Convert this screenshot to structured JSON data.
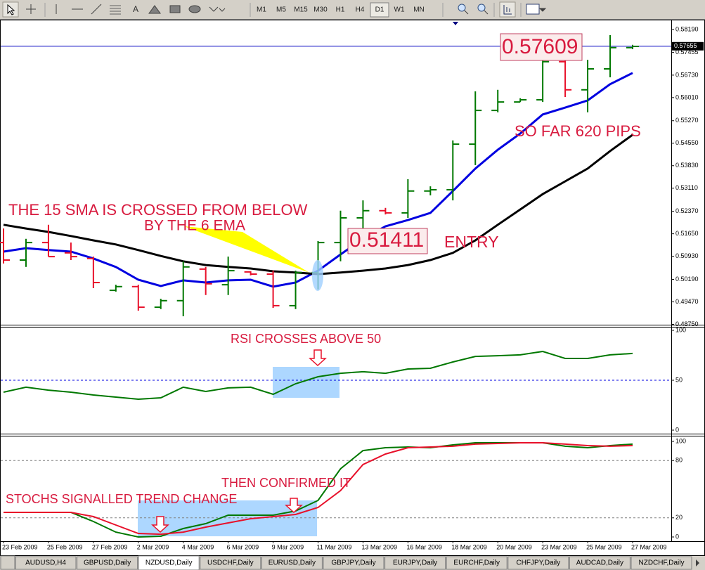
{
  "toolbar": {
    "text_tool": "A",
    "timeframes": [
      "M1",
      "M5",
      "M15",
      "M30",
      "H1",
      "H4",
      "D1",
      "W1",
      "MN"
    ],
    "active_timeframe": "D1"
  },
  "chart_data": [
    {
      "type": "ohlc",
      "categories": [
        "23 Feb 2009",
        null,
        "25 Feb 2009",
        null,
        "27 Feb 2009",
        null,
        "2 Mar 2009",
        null,
        "4 Mar 2009",
        null,
        "6 Mar 2009",
        null,
        "9 Mar 2009",
        null,
        "11 Mar 2009",
        null,
        "13 Mar 2009",
        null,
        "16 Mar 2009",
        null,
        "18 Mar 2009",
        null,
        "20 Mar 2009",
        null,
        "23 Mar 2009",
        null,
        "25 Mar 2009",
        null,
        "27 Mar 2009"
      ],
      "open": [
        0.5137,
        0.5081,
        0.5137,
        0.5104,
        0.5086,
        0.4984,
        0.4996,
        0.493,
        0.4951,
        0.5052,
        0.5002,
        0.5043,
        0.5036,
        0.4935,
        0.5041,
        0.5137,
        0.5216,
        0.5239,
        0.5232,
        0.5302,
        0.5306,
        0.5452,
        0.556,
        0.5587,
        0.5594,
        0.5716,
        0.5626,
        0.5693,
        0.5761
      ],
      "high": [
        0.5182,
        0.5149,
        0.5194,
        0.5137,
        0.5092,
        0.5002,
        0.5002,
        0.4957,
        0.5077,
        0.5059,
        0.5092,
        0.5045,
        0.5047,
        0.5047,
        0.5142,
        0.5239,
        0.5272,
        0.5248,
        0.534,
        0.5317,
        0.5464,
        0.5621,
        0.5626,
        0.5599,
        0.5734,
        0.5734,
        0.5722,
        0.5801,
        0.577
      ],
      "low": [
        0.507,
        0.5059,
        0.5092,
        0.5081,
        0.4991,
        0.498,
        0.4919,
        0.4924,
        0.4901,
        0.4969,
        0.4969,
        0.5032,
        0.4928,
        0.4924,
        0.4987,
        0.5077,
        0.5171,
        0.5227,
        0.5216,
        0.5288,
        0.5272,
        0.5385,
        0.5554,
        0.5587,
        0.5587,
        0.5603,
        0.5554,
        0.5666,
        0.5756
      ],
      "close": [
        0.5081,
        0.5137,
        0.5092,
        0.5092,
        0.5009,
        0.4996,
        0.493,
        0.4951,
        0.5059,
        0.5005,
        0.5047,
        0.5036,
        0.4935,
        0.5041,
        0.5137,
        0.5216,
        0.5239,
        0.5232,
        0.5302,
        0.5306,
        0.5452,
        0.556,
        0.5587,
        0.5594,
        0.5716,
        0.5626,
        0.5693,
        0.5761,
        0.5765
      ],
      "up_color": "#007800",
      "down_color": "#e8102a",
      "overlays": [
        {
          "color": "#0000e0",
          "values": [
            0.5108,
            0.5119,
            0.5113,
            0.5108,
            0.5086,
            0.5059,
            0.5018,
            0.4998,
            0.5016,
            0.5009,
            0.5016,
            0.5018,
            0.4996,
            0.5009,
            0.5047,
            0.5099,
            0.5149,
            0.5189,
            0.5209,
            0.5232,
            0.5302,
            0.5374,
            0.5434,
            0.5486,
            0.5547,
            0.5569,
            0.5592,
            0.5644,
            0.568
          ]
        },
        {
          "color": "#000000",
          "values": [
            0.5194,
            0.5182,
            0.5171,
            0.5158,
            0.5144,
            0.5131,
            0.5113,
            0.5094,
            0.5077,
            0.5065,
            0.5059,
            0.5054,
            0.5045,
            0.5041,
            0.5036,
            0.5041,
            0.5047,
            0.5054,
            0.5065,
            0.5081,
            0.5104,
            0.5144,
            0.5194,
            0.5243,
            0.5292,
            0.5333,
            0.5374,
            0.543,
            0.5482
          ]
        }
      ],
      "ylim": [
        0.4874,
        0.5846
      ],
      "yticks": [
        {
          "value": 0.5819,
          "label": "0.58190"
        },
        {
          "value": 0.57455,
          "label": "0.57455"
        },
        {
          "value": 0.5673,
          "label": "0.56730"
        },
        {
          "value": 0.5601,
          "label": "0.56010"
        },
        {
          "value": 0.5527,
          "label": "0.55270"
        },
        {
          "value": 0.5455,
          "label": "0.54550"
        },
        {
          "value": 0.5383,
          "label": "0.53830"
        },
        {
          "value": 0.5311,
          "label": "0.53110"
        },
        {
          "value": 0.5237,
          "label": "0.52370"
        },
        {
          "value": 0.5165,
          "label": "0.51650"
        },
        {
          "value": 0.5093,
          "label": "0.50930"
        },
        {
          "value": 0.5019,
          "label": "0.50190"
        },
        {
          "value": 0.4947,
          "label": "0.49470"
        },
        {
          "value": 0.4875,
          "label": "0.48750"
        }
      ],
      "last_price": 0.57655,
      "annotations": [
        "THE 15 SMA IS CROSSED FROM BELOW",
        "BY THE 6 EMA",
        "0.51411",
        "ENTRY",
        "0.57609",
        "SO FAR 620 PIPS"
      ]
    },
    {
      "type": "line",
      "values": [
        38.0,
        43.0,
        40.1,
        38.0,
        35.2,
        33.1,
        31.0,
        32.4,
        43.0,
        38.7,
        42.3,
        43.0,
        35.9,
        46.5,
        53.5,
        57.0,
        58.5,
        57.0,
        61.3,
        62.0,
        68.3,
        73.9,
        74.6,
        75.4,
        78.9,
        71.8,
        71.8,
        75.4,
        76.8
      ],
      "color": "#007800",
      "ylim": [
        0,
        100
      ],
      "yticks": [
        100,
        50,
        0
      ],
      "levels": [
        50
      ],
      "level_color": "#0000e0",
      "annotations": [
        "RSI CROSSES ABOVE 50"
      ]
    },
    {
      "type": "line",
      "series": [
        {
          "color": "#007800",
          "values": [
            25.7,
            25.7,
            25.7,
            25.7,
            16.2,
            5.1,
            0,
            0.7,
            8.8,
            14.0,
            22.8,
            22.8,
            22.8,
            27.2,
            38.2,
            71.3,
            90.4,
            93.4,
            94.1,
            93.4,
            96.3,
            98.5,
            98.5,
            98.5,
            98.5,
            94.9,
            93.4,
            95.6,
            97.1
          ]
        },
        {
          "color": "#e8102a",
          "values": [
            25.7,
            25.7,
            25.7,
            25.7,
            21.3,
            12.5,
            3.7,
            2.9,
            5.1,
            10.3,
            14.7,
            19.1,
            21.3,
            23.5,
            30.9,
            48.5,
            75.7,
            86.8,
            93.4,
            94.1,
            94.9,
            97.1,
            97.8,
            98.5,
            98.5,
            97.1,
            95.6,
            94.9,
            95.6
          ]
        }
      ],
      "ylim": [
        0,
        100
      ],
      "yticks": [
        100,
        80,
        20,
        0
      ],
      "levels": [
        80,
        20
      ],
      "level_color": "#808080",
      "annotations": [
        "THEN CONFIRMED IT",
        "STOCHS SIGNALLED TREND CHANGE"
      ]
    }
  ],
  "tabs": [
    "AUDUSD,H4",
    "GBPUSD,Daily",
    "NZDUSD,Daily",
    "USDCHF,Daily",
    "EURUSD,Daily",
    "GBPJPY,Daily",
    "EURJPY,Daily",
    "EURCHF,Daily",
    "CHFJPY,Daily",
    "AUDCAD,Daily",
    "NZDCHF,Daily"
  ],
  "active_tab": "NZDUSD,Daily"
}
